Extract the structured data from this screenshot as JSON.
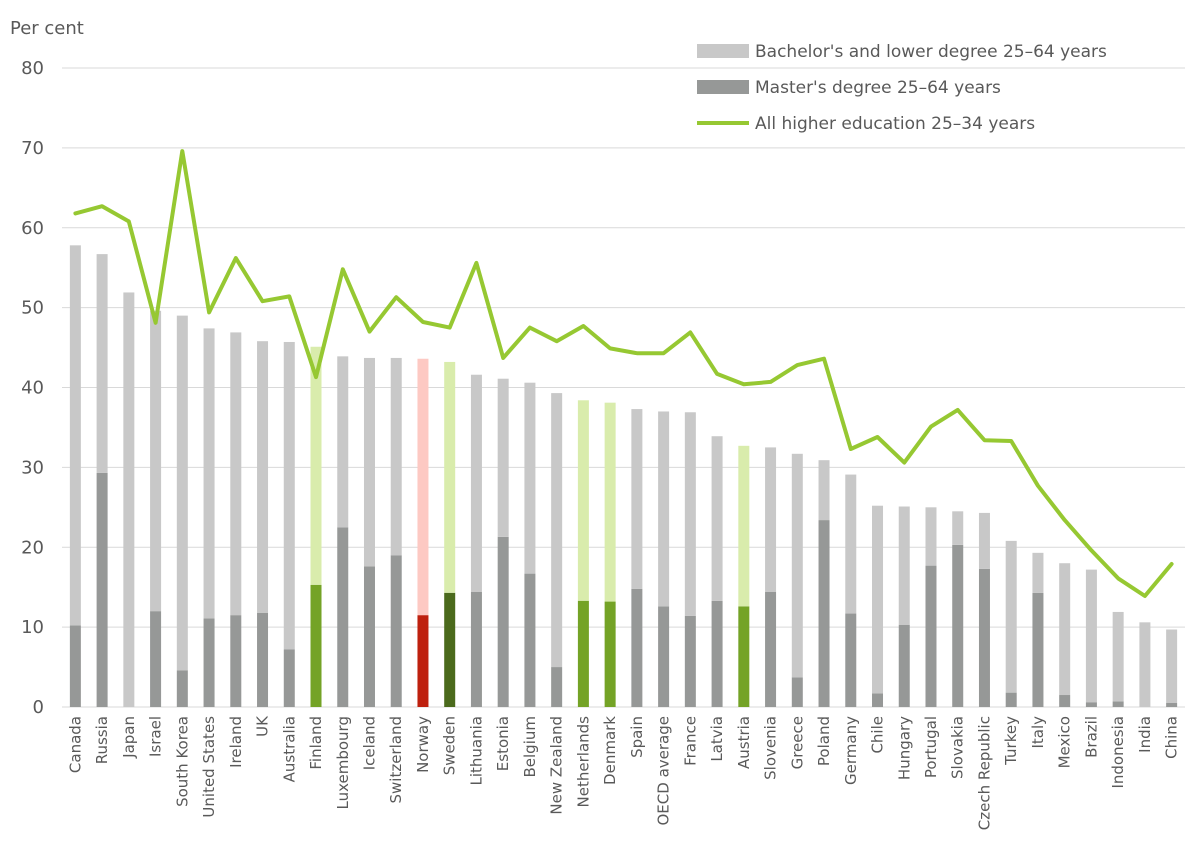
{
  "chart_data": {
    "type": "bar",
    "stacked": true,
    "ylabel": "Per cent",
    "ylim": [
      0,
      80
    ],
    "yticks": [
      "0",
      "10",
      "20",
      "30",
      "40",
      "50",
      "60",
      "70",
      "80"
    ],
    "ytick_values": [
      0,
      10,
      20,
      30,
      40,
      50,
      60,
      70,
      80
    ],
    "grid": true,
    "legend_position": "top-right",
    "categories": [
      "Canada",
      "Russia",
      "Japan",
      "Israel",
      "South Korea",
      "United States",
      "Ireland",
      "UK",
      "Australia",
      "Finland",
      "Luxembourg",
      "Iceland",
      "Switzerland",
      "Norway",
      "Sweden",
      "Lithuania",
      "Estonia",
      "Belgium",
      "New Zealand",
      "Netherlands",
      "Denmark",
      "Spain",
      "OECD average",
      "France",
      "Latvia",
      "Austria",
      "Slovenia",
      "Greece",
      "Poland",
      "Germany",
      "Chile",
      "Hungary",
      "Portugal",
      "Slovakia",
      "Czech Republic",
      "Turkey",
      "Italy",
      "Mexico",
      "Brazil",
      "Indonesia",
      "India",
      "China"
    ],
    "series": [
      {
        "name": "Master's degree 25–64 years",
        "kind": "bar",
        "values": [
          10.2,
          29.3,
          0,
          12.0,
          4.6,
          11.1,
          11.5,
          11.8,
          7.2,
          15.3,
          22.5,
          17.6,
          19.0,
          11.5,
          14.3,
          14.4,
          21.3,
          16.7,
          5.0,
          13.3,
          13.2,
          14.8,
          12.6,
          11.4,
          13.3,
          12.6,
          14.4,
          3.7,
          23.4,
          11.7,
          1.7,
          10.3,
          17.7,
          20.3,
          17.3,
          1.8,
          14.3,
          1.5,
          0.6,
          0.7,
          0,
          0.5
        ]
      },
      {
        "name": "Bachelor's and lower degree 25–64 years",
        "kind": "bar",
        "values": [
          47.6,
          27.4,
          51.9,
          37.6,
          44.4,
          36.3,
          35.4,
          34.0,
          38.5,
          29.8,
          21.4,
          26.1,
          24.7,
          32.1,
          28.9,
          27.2,
          19.8,
          23.9,
          34.3,
          25.1,
          24.9,
          22.5,
          24.4,
          25.5,
          20.6,
          20.1,
          18.1,
          28.0,
          7.5,
          17.4,
          23.5,
          14.8,
          7.3,
          4.2,
          7.0,
          19.0,
          5.0,
          16.5,
          16.6,
          11.2,
          10.6,
          9.2
        ]
      },
      {
        "name": "All higher education 25–34 years",
        "kind": "line",
        "values": [
          61.8,
          62.7,
          60.8,
          48.1,
          69.6,
          49.4,
          56.2,
          50.8,
          51.4,
          41.3,
          54.8,
          47.0,
          51.3,
          48.2,
          47.5,
          55.6,
          43.7,
          47.5,
          45.8,
          47.7,
          44.9,
          44.3,
          44.3,
          46.9,
          41.7,
          40.4,
          40.7,
          42.8,
          43.6,
          32.3,
          33.8,
          30.6,
          35.1,
          37.2,
          33.4,
          33.3,
          27.7,
          23.4,
          19.6,
          16.1,
          13.9,
          17.9
        ]
      }
    ],
    "colors": {
      "bachelor_default": "#c8c8c8",
      "master_default": "#969897",
      "line": "#96c832",
      "bachelor_highlight": "#d9ecac",
      "master_highlight": "#74a326",
      "norway_bachelor": "#fdc9c3",
      "norway_master": "#be200e",
      "sweden_bachelor": "#d9ecac",
      "sweden_master": "#4b6a1c",
      "gridline": "#d9d9d9",
      "text": "#595959"
    },
    "highlights": {
      "Finland": "highlight",
      "Netherlands": "highlight",
      "Denmark": "highlight",
      "Austria": "highlight",
      "Norway": "norway",
      "Sweden": "sweden"
    }
  }
}
